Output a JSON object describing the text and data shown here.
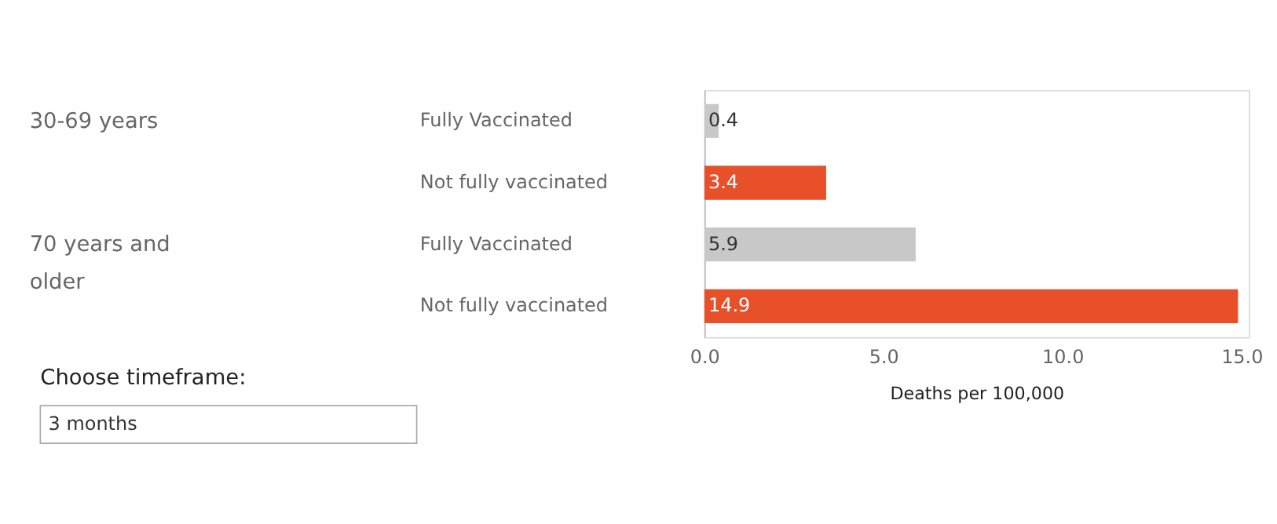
{
  "chart_data": {
    "type": "bar",
    "orientation": "horizontal",
    "categories": [
      "Fully Vaccinated",
      "Not fully vaccinated",
      "Fully Vaccinated",
      "Not fully vaccinated"
    ],
    "values": [
      0.4,
      3.4,
      5.9,
      14.9
    ],
    "colors": [
      "#c8c8c8",
      "#e8502a",
      "#c8c8c8",
      "#e8502a"
    ],
    "data_labels": true,
    "xlabel": "Deaths per 100,000",
    "xlim": [
      0,
      15.2
    ],
    "xticks": [
      {
        "value": 0,
        "label": "0.0"
      },
      {
        "value": 5,
        "label": "5.0"
      },
      {
        "value": 10,
        "label": "10.0"
      },
      {
        "value": 15,
        "label": "15.0"
      }
    ],
    "grid": false,
    "annotations": [
      "30-69 years",
      "70 years and older",
      "Choose timeframe:",
      "3 months"
    ]
  }
}
